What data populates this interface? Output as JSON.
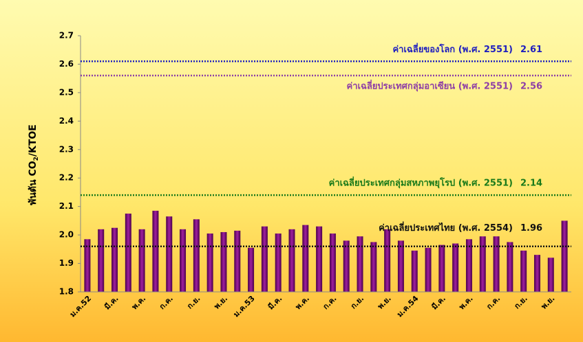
{
  "chart_data": {
    "type": "bar",
    "ylabel": [
      "พันตัน CO",
      "2",
      "/KTOE"
    ],
    "categories": [
      "ม.ค.52",
      null,
      "มี.ค.",
      null,
      "พ.ค.",
      null,
      "ก.ค.",
      null,
      "ก.ย.",
      null,
      "พ.ย.",
      null,
      "ม.ค.53",
      null,
      "มี.ค.",
      null,
      "พ.ค.",
      null,
      "ก.ค.",
      null,
      "ก.ย.",
      null,
      "พ.ย.",
      null,
      "ม.ค.54",
      null,
      "มี.ค.",
      null,
      "พ.ค.",
      null,
      "ก.ค.",
      null,
      "ก.ย.",
      null,
      "พ.ย.",
      null
    ],
    "values": [
      1.985,
      2.02,
      2.025,
      2.075,
      2.02,
      2.085,
      2.065,
      2.02,
      2.055,
      2.005,
      2.01,
      2.015,
      1.955,
      2.03,
      2.005,
      2.02,
      2.035,
      2.03,
      2.005,
      1.98,
      1.995,
      1.975,
      2.02,
      1.98,
      1.945,
      1.955,
      1.965,
      1.97,
      1.985,
      1.995,
      1.995,
      1.975,
      1.945,
      1.93,
      1.92,
      2.05
    ],
    "color": "#800080",
    "ylim": [
      1.8,
      2.7
    ],
    "yticks": [
      {
        "value": 1.8,
        "label": "1.8"
      },
      {
        "value": 1.9,
        "label": "1.9"
      },
      {
        "value": 2.0,
        "label": "2.0"
      },
      {
        "value": 2.1,
        "label": "2.1"
      },
      {
        "value": 2.2,
        "label": "2.2"
      },
      {
        "value": 2.3,
        "label": "2.3"
      },
      {
        "value": 2.4,
        "label": "2.4"
      },
      {
        "value": 2.5,
        "label": "2.5"
      },
      {
        "value": 2.6,
        "label": "2.6"
      },
      {
        "value": 2.7,
        "label": "2.7"
      }
    ],
    "reference_lines": [
      {
        "label": "ค่าเฉลี่ยของโลก (พ.ศ. 2551)",
        "value": 2.61,
        "color": "#1f1fbf"
      },
      {
        "label": "ค่าเฉลี่ยประเทศกลุ่มอาเซียน (พ.ศ. 2551)",
        "value": 2.56,
        "color": "#8e3fa6"
      },
      {
        "label": "ค่าเฉลี่ยประเทศกลุ่มสหภาพยุโรป (พ.ศ. 2551)",
        "value": 2.14,
        "color": "#1a7a1a"
      },
      {
        "label": "ค่าเฉลี่ยประเทศไทย (พ.ศ. 2554)",
        "value": 1.96,
        "color": "#111111"
      }
    ]
  }
}
